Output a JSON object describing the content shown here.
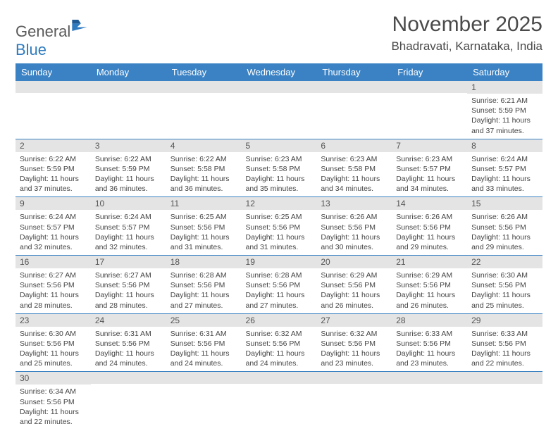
{
  "brand": {
    "part1": "General",
    "part2": "Blue"
  },
  "title": "November 2025",
  "location": "Bhadravati, Karnataka, India",
  "colors": {
    "header_bg": "#3a82c4",
    "header_text": "#ffffff",
    "daynum_bg": "#e4e4e4",
    "cell_border": "#3a82c4",
    "logo_gray": "#5a5a5a",
    "logo_blue": "#2f7bbf"
  },
  "weekdays": [
    "Sunday",
    "Monday",
    "Tuesday",
    "Wednesday",
    "Thursday",
    "Friday",
    "Saturday"
  ],
  "weeks": [
    [
      {
        "n": "",
        "lines": []
      },
      {
        "n": "",
        "lines": []
      },
      {
        "n": "",
        "lines": []
      },
      {
        "n": "",
        "lines": []
      },
      {
        "n": "",
        "lines": []
      },
      {
        "n": "",
        "lines": []
      },
      {
        "n": "1",
        "lines": [
          "Sunrise: 6:21 AM",
          "Sunset: 5:59 PM",
          "Daylight: 11 hours and 37 minutes."
        ]
      }
    ],
    [
      {
        "n": "2",
        "lines": [
          "Sunrise: 6:22 AM",
          "Sunset: 5:59 PM",
          "Daylight: 11 hours and 37 minutes."
        ]
      },
      {
        "n": "3",
        "lines": [
          "Sunrise: 6:22 AM",
          "Sunset: 5:59 PM",
          "Daylight: 11 hours and 36 minutes."
        ]
      },
      {
        "n": "4",
        "lines": [
          "Sunrise: 6:22 AM",
          "Sunset: 5:58 PM",
          "Daylight: 11 hours and 36 minutes."
        ]
      },
      {
        "n": "5",
        "lines": [
          "Sunrise: 6:23 AM",
          "Sunset: 5:58 PM",
          "Daylight: 11 hours and 35 minutes."
        ]
      },
      {
        "n": "6",
        "lines": [
          "Sunrise: 6:23 AM",
          "Sunset: 5:58 PM",
          "Daylight: 11 hours and 34 minutes."
        ]
      },
      {
        "n": "7",
        "lines": [
          "Sunrise: 6:23 AM",
          "Sunset: 5:57 PM",
          "Daylight: 11 hours and 34 minutes."
        ]
      },
      {
        "n": "8",
        "lines": [
          "Sunrise: 6:24 AM",
          "Sunset: 5:57 PM",
          "Daylight: 11 hours and 33 minutes."
        ]
      }
    ],
    [
      {
        "n": "9",
        "lines": [
          "Sunrise: 6:24 AM",
          "Sunset: 5:57 PM",
          "Daylight: 11 hours and 32 minutes."
        ]
      },
      {
        "n": "10",
        "lines": [
          "Sunrise: 6:24 AM",
          "Sunset: 5:57 PM",
          "Daylight: 11 hours and 32 minutes."
        ]
      },
      {
        "n": "11",
        "lines": [
          "Sunrise: 6:25 AM",
          "Sunset: 5:56 PM",
          "Daylight: 11 hours and 31 minutes."
        ]
      },
      {
        "n": "12",
        "lines": [
          "Sunrise: 6:25 AM",
          "Sunset: 5:56 PM",
          "Daylight: 11 hours and 31 minutes."
        ]
      },
      {
        "n": "13",
        "lines": [
          "Sunrise: 6:26 AM",
          "Sunset: 5:56 PM",
          "Daylight: 11 hours and 30 minutes."
        ]
      },
      {
        "n": "14",
        "lines": [
          "Sunrise: 6:26 AM",
          "Sunset: 5:56 PM",
          "Daylight: 11 hours and 29 minutes."
        ]
      },
      {
        "n": "15",
        "lines": [
          "Sunrise: 6:26 AM",
          "Sunset: 5:56 PM",
          "Daylight: 11 hours and 29 minutes."
        ]
      }
    ],
    [
      {
        "n": "16",
        "lines": [
          "Sunrise: 6:27 AM",
          "Sunset: 5:56 PM",
          "Daylight: 11 hours and 28 minutes."
        ]
      },
      {
        "n": "17",
        "lines": [
          "Sunrise: 6:27 AM",
          "Sunset: 5:56 PM",
          "Daylight: 11 hours and 28 minutes."
        ]
      },
      {
        "n": "18",
        "lines": [
          "Sunrise: 6:28 AM",
          "Sunset: 5:56 PM",
          "Daylight: 11 hours and 27 minutes."
        ]
      },
      {
        "n": "19",
        "lines": [
          "Sunrise: 6:28 AM",
          "Sunset: 5:56 PM",
          "Daylight: 11 hours and 27 minutes."
        ]
      },
      {
        "n": "20",
        "lines": [
          "Sunrise: 6:29 AM",
          "Sunset: 5:56 PM",
          "Daylight: 11 hours and 26 minutes."
        ]
      },
      {
        "n": "21",
        "lines": [
          "Sunrise: 6:29 AM",
          "Sunset: 5:56 PM",
          "Daylight: 11 hours and 26 minutes."
        ]
      },
      {
        "n": "22",
        "lines": [
          "Sunrise: 6:30 AM",
          "Sunset: 5:56 PM",
          "Daylight: 11 hours and 25 minutes."
        ]
      }
    ],
    [
      {
        "n": "23",
        "lines": [
          "Sunrise: 6:30 AM",
          "Sunset: 5:56 PM",
          "Daylight: 11 hours and 25 minutes."
        ]
      },
      {
        "n": "24",
        "lines": [
          "Sunrise: 6:31 AM",
          "Sunset: 5:56 PM",
          "Daylight: 11 hours and 24 minutes."
        ]
      },
      {
        "n": "25",
        "lines": [
          "Sunrise: 6:31 AM",
          "Sunset: 5:56 PM",
          "Daylight: 11 hours and 24 minutes."
        ]
      },
      {
        "n": "26",
        "lines": [
          "Sunrise: 6:32 AM",
          "Sunset: 5:56 PM",
          "Daylight: 11 hours and 24 minutes."
        ]
      },
      {
        "n": "27",
        "lines": [
          "Sunrise: 6:32 AM",
          "Sunset: 5:56 PM",
          "Daylight: 11 hours and 23 minutes."
        ]
      },
      {
        "n": "28",
        "lines": [
          "Sunrise: 6:33 AM",
          "Sunset: 5:56 PM",
          "Daylight: 11 hours and 23 minutes."
        ]
      },
      {
        "n": "29",
        "lines": [
          "Sunrise: 6:33 AM",
          "Sunset: 5:56 PM",
          "Daylight: 11 hours and 22 minutes."
        ]
      }
    ],
    [
      {
        "n": "30",
        "lines": [
          "Sunrise: 6:34 AM",
          "Sunset: 5:56 PM",
          "Daylight: 11 hours and 22 minutes."
        ]
      },
      {
        "n": "",
        "lines": []
      },
      {
        "n": "",
        "lines": []
      },
      {
        "n": "",
        "lines": []
      },
      {
        "n": "",
        "lines": []
      },
      {
        "n": "",
        "lines": []
      },
      {
        "n": "",
        "lines": []
      }
    ]
  ]
}
